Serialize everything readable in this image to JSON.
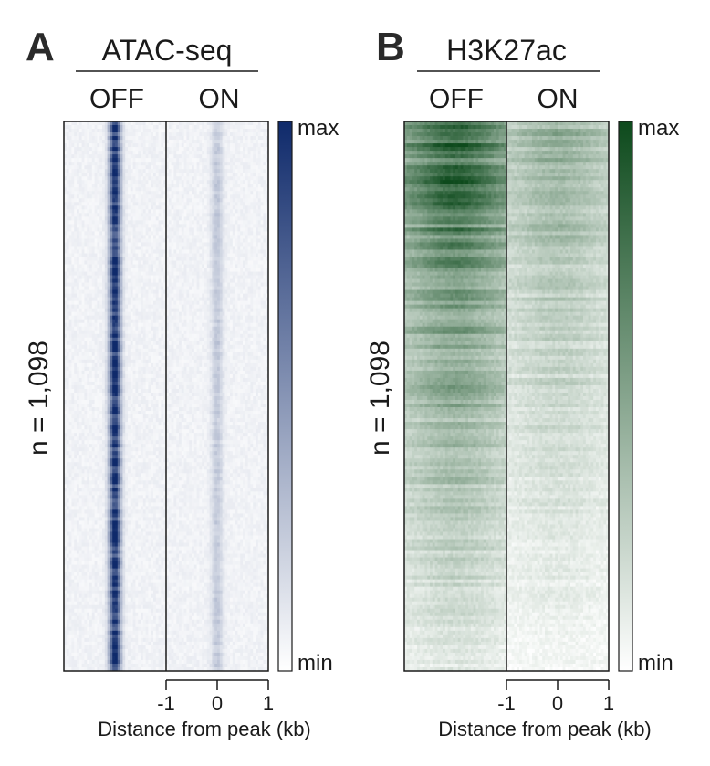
{
  "chart_data": [
    {
      "type": "heatmap",
      "panel_letter": "A",
      "title": "ATAC-seq",
      "conditions": [
        "OFF",
        "ON"
      ],
      "row_label": "n = 1,098",
      "n_rows": 1098,
      "xlabel": "Distance from peak (kb)",
      "x_ticks": [
        "-1",
        "0",
        "1"
      ],
      "x_range_kb": [
        -1,
        1
      ],
      "colorbar": {
        "max_label": "max",
        "min_label": "min",
        "max_color": "#0f2a6b",
        "min_color": "#ffffff"
      },
      "profile": {
        "OFF_center_intensity": 0.95,
        "ON_center_intensity": 0.25,
        "background_intensity": 0.06,
        "peak_half_width_kb": 0.08
      }
    },
    {
      "type": "heatmap",
      "panel_letter": "B",
      "title": "H3K27ac",
      "conditions": [
        "OFF",
        "ON"
      ],
      "row_label": "n = 1,098",
      "n_rows": 1098,
      "xlabel": "Distance from peak (kb)",
      "x_ticks": [
        "-1",
        "0",
        "1"
      ],
      "x_range_kb": [
        -1,
        1
      ],
      "colorbar": {
        "max_label": "max",
        "min_label": "min",
        "max_color": "#0d4a1c",
        "min_color": "#ffffff"
      },
      "profile": {
        "OFF_top_intensity": 0.9,
        "OFF_bottom_intensity": 0.12,
        "ON_top_intensity": 0.45,
        "ON_bottom_intensity": 0.05,
        "peak_half_width_kb": 0.6
      }
    }
  ]
}
